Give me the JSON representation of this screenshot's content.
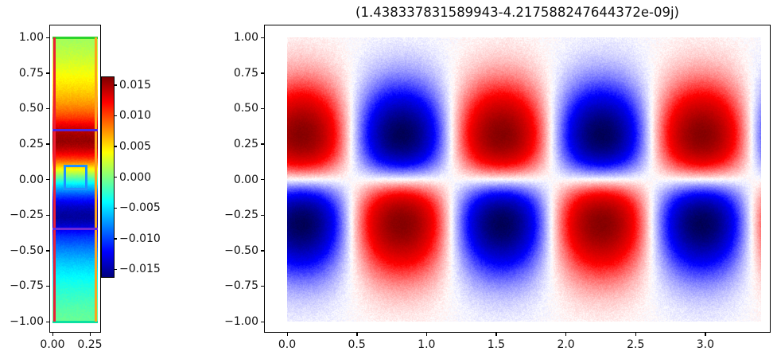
{
  "figure": {
    "title": "(1.438337831589943-4.217588247644372e-09j)",
    "background": "#ffffff"
  },
  "chart_data": [
    {
      "id": "eigenfunction_strip",
      "type": "heatmap",
      "colormap": "jet",
      "x_extent": [
        0.0,
        0.3
      ],
      "y_extent": [
        -1.0,
        1.0
      ],
      "value_range": [
        -0.01625,
        0.01625
      ],
      "xticks": {
        "labels": [
          "0.00",
          "0.25"
        ],
        "values": [
          0.0,
          0.25
        ]
      },
      "yticks": {
        "labels": [
          "1.00",
          "0.75",
          "0.50",
          "0.25",
          "0.00",
          "−0.25",
          "−0.50",
          "−0.75",
          "−1.00"
        ],
        "values": [
          1.0,
          0.75,
          0.5,
          0.25,
          0.0,
          -0.25,
          -0.5,
          -0.75,
          -1.0
        ]
      },
      "profile": {
        "y": [
          -1.0,
          -0.92,
          -0.85,
          -0.78,
          -0.72,
          -0.65,
          -0.58,
          -0.52,
          -0.46,
          -0.4,
          -0.36,
          -0.31,
          -0.27,
          -0.23,
          -0.19,
          -0.15,
          -0.11,
          -0.07,
          -0.04,
          -0.01,
          0.02,
          0.04,
          0.06,
          0.09,
          0.12,
          0.15,
          0.19,
          0.23,
          0.27,
          0.32,
          0.36,
          0.4,
          0.44,
          0.48,
          0.53,
          0.58,
          0.64,
          0.7,
          0.76,
          0.82,
          0.88,
          0.94,
          1.0
        ],
        "value": [
          -0.0007,
          -0.0013,
          -0.002,
          -0.0028,
          -0.0036,
          -0.0047,
          -0.006,
          -0.0074,
          -0.009,
          -0.0108,
          -0.0124,
          -0.0143,
          -0.0154,
          -0.015,
          -0.0139,
          -0.0121,
          -0.0098,
          -0.0072,
          -0.0051,
          -0.0028,
          -0.0004,
          0.0013,
          0.003,
          0.0055,
          0.0081,
          0.0106,
          0.013,
          0.0147,
          0.0156,
          0.015,
          0.0138,
          0.012,
          0.0103,
          0.0089,
          0.0075,
          0.0064,
          0.0053,
          0.0044,
          0.0036,
          0.0028,
          0.0021,
          0.0015,
          0.001
        ]
      },
      "overlays": [
        {
          "kind": "hline",
          "y": 1.0,
          "color": "#2bd42b",
          "name": "top-boundary-line"
        },
        {
          "kind": "hline",
          "y": -1.0,
          "color": "#0ce0a0",
          "name": "bottom-boundary-line"
        },
        {
          "kind": "vline",
          "x": 0.012,
          "color": "#ed1f35",
          "name": "left-wall-line"
        },
        {
          "kind": "vline",
          "x": 0.29,
          "color": "#ffa41b",
          "name": "right-wall-line"
        },
        {
          "kind": "hline",
          "y": 0.345,
          "color": "#4e25dd",
          "name": "upper-interface-line"
        },
        {
          "kind": "hline",
          "y": -0.345,
          "color": "#7028d6",
          "name": "lower-interface-line"
        },
        {
          "kind": "rect",
          "x0": 0.075,
          "x1": 0.235,
          "y0": -0.075,
          "y1": 0.105,
          "color": "#1e90ff",
          "name": "probe-rectangle"
        }
      ]
    },
    {
      "id": "colorbar",
      "type": "colorbar",
      "colormap": "jet",
      "vmin": -0.01625,
      "vmax": 0.01625,
      "ticks": {
        "labels": [
          "0.015",
          "0.010",
          "0.005",
          "0.000",
          "−0.005",
          "−0.010",
          "−0.015"
        ],
        "values": [
          0.015,
          0.01,
          0.005,
          0.0,
          -0.005,
          -0.01,
          -0.015
        ]
      }
    },
    {
      "id": "mode_field",
      "type": "heatmap",
      "colormap": "seismic",
      "title": "(1.438337831589943-4.217588247644372e-09j)",
      "x_extent": [
        0.0,
        3.4
      ],
      "y_extent": [
        -1.0,
        1.0
      ],
      "xticks": {
        "labels": [
          "0.0",
          "0.5",
          "1.0",
          "1.5",
          "2.0",
          "2.5",
          "3.0"
        ],
        "values": [
          0.0,
          0.5,
          1.0,
          1.5,
          2.0,
          2.5,
          3.0
        ]
      },
      "yticks": {
        "labels": [
          "1.00",
          "0.75",
          "0.50",
          "0.25",
          "0.00",
          "−0.25",
          "−0.50",
          "−0.75",
          "−1.00"
        ],
        "values": [
          1.0,
          0.75,
          0.5,
          0.25,
          0.0,
          -0.25,
          -0.5,
          -0.75,
          -1.0
        ]
      },
      "pattern": {
        "formula": "f(x,y) = y*exp(-5*y^2)*cos(2*pi*(x-0.1)/1.438337831589943)",
        "x_period": 1.438337831589943,
        "x_phase": 0.1,
        "envelope_coeff": 5.0,
        "peak_abs_y": 0.32,
        "top_row_red_centers_x": [
          0.1,
          1.54,
          2.98
        ],
        "top_row_blue_centers_x": [
          0.82,
          2.26
        ],
        "bottom_row_blue_centers_x": [
          0.1,
          1.54,
          2.98
        ],
        "bottom_row_red_centers_x": [
          0.82,
          2.26
        ]
      }
    }
  ]
}
